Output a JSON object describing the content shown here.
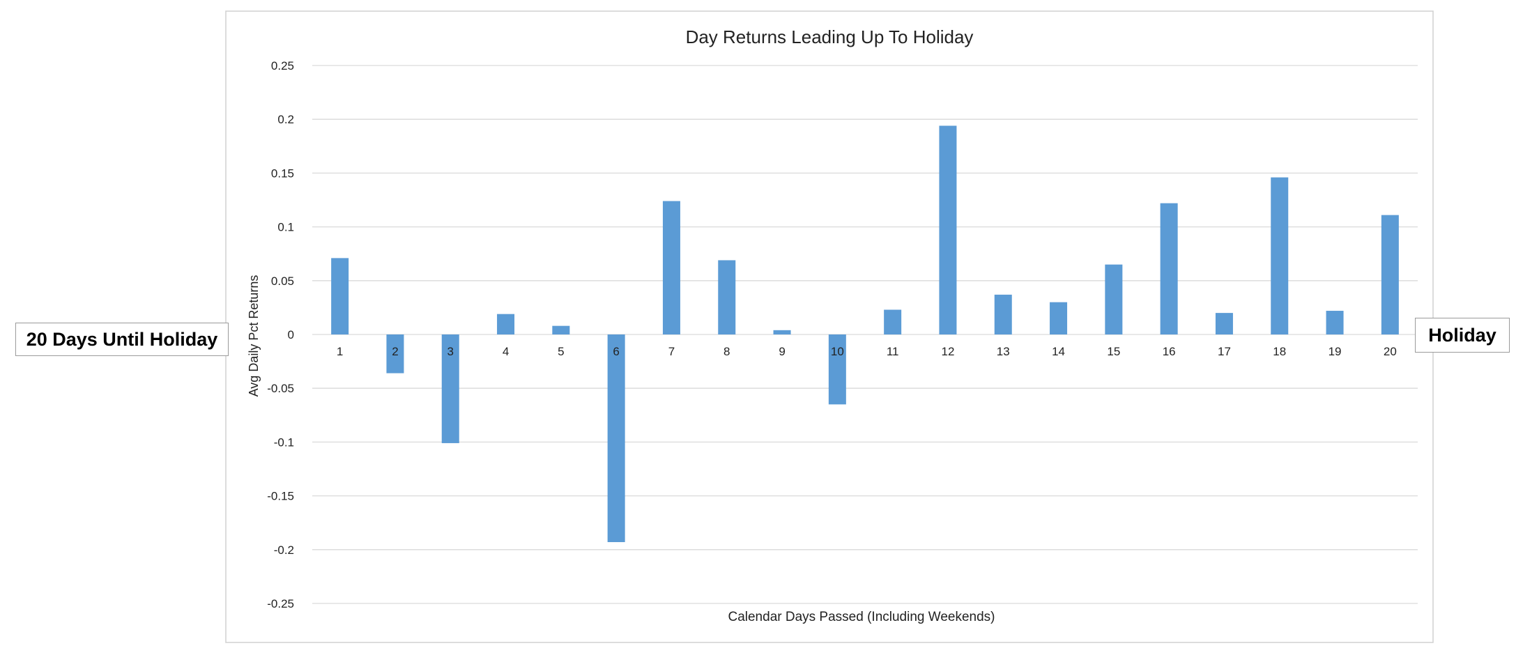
{
  "chart_data": {
    "type": "bar",
    "title": "Day Returns Leading Up To Holiday",
    "xlabel": "Calendar Days Passed (Including Weekends)",
    "ylabel": "Avg Daily Pct Returns",
    "categories": [
      "1",
      "2",
      "3",
      "4",
      "5",
      "6",
      "7",
      "8",
      "9",
      "10",
      "11",
      "12",
      "13",
      "14",
      "15",
      "16",
      "17",
      "18",
      "19",
      "20"
    ],
    "values": [
      0.071,
      -0.036,
      -0.101,
      0.019,
      0.008,
      -0.193,
      0.124,
      0.069,
      0.004,
      -0.065,
      0.023,
      0.194,
      0.037,
      0.03,
      0.065,
      0.122,
      0.02,
      0.146,
      0.022,
      0.111
    ],
    "ylim": [
      -0.25,
      0.25
    ],
    "yticks": [
      0.25,
      0.2,
      0.15,
      0.1,
      0.05,
      0,
      -0.05,
      -0.1,
      -0.15,
      -0.2,
      -0.25
    ],
    "ytick_labels": [
      "0.25",
      "0.2",
      "0.15",
      "0.1",
      "0.05",
      "0",
      "-0.05",
      "-0.1",
      "-0.15",
      "-0.2",
      "-0.25"
    ],
    "grid": true,
    "bar_color": "#5b9bd5",
    "gridline_color": "#d9d9d9"
  },
  "annotations": {
    "left_label": "20 Days Until Holiday",
    "right_label": "Holiday"
  }
}
